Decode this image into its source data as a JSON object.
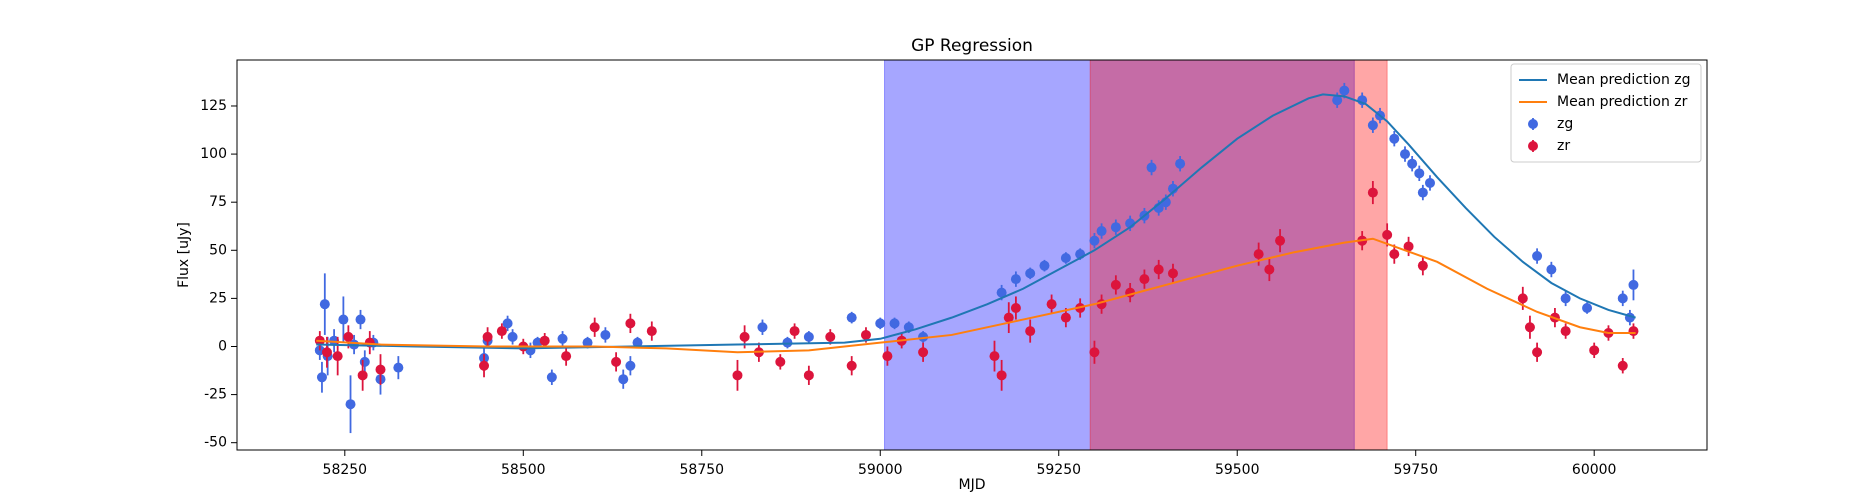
{
  "chart_data": {
    "type": "line",
    "title": "GP Regression",
    "x_label": "MJD",
    "y_label": "Flux [uJy]",
    "xlim": [
      58099,
      60158
    ],
    "ylim": [
      -53.8,
      148.9
    ],
    "xticks": [
      58250,
      58500,
      58750,
      59000,
      59250,
      59500,
      59750,
      60000
    ],
    "yticks": [
      -50,
      -25,
      0,
      25,
      50,
      75,
      100,
      125
    ],
    "legend": "upper right",
    "spans": [
      {
        "x": [
          59006,
          59664
        ],
        "color": "#0000ff"
      },
      {
        "x": [
          59294,
          59710
        ],
        "color": "#ff0000"
      }
    ],
    "span_alpha": 0.35,
    "series": [
      {
        "name": "Mean prediction zg",
        "type": "line",
        "color": "#1f77b4",
        "x": [
          58210,
          58350,
          58500,
          58650,
          58800,
          58950,
          59000,
          59050,
          59100,
          59150,
          59200,
          59250,
          59300,
          59350,
          59400,
          59450,
          59500,
          59550,
          59600,
          59620,
          59650,
          59680,
          59710,
          59740,
          59780,
          59820,
          59860,
          59900,
          59940,
          59980,
          60020,
          60058
        ],
        "values": [
          1,
          0,
          -1,
          0,
          1,
          2,
          4,
          9,
          15,
          22,
          30,
          40,
          50,
          62,
          77,
          93,
          108,
          120,
          129,
          131,
          130,
          126,
          117,
          105,
          88,
          72,
          57,
          44,
          33,
          25,
          19,
          15
        ]
      },
      {
        "name": "Mean prediction zr",
        "type": "line",
        "color": "#ff7f0e",
        "x": [
          58210,
          58300,
          58450,
          58600,
          58700,
          58800,
          58900,
          59000,
          59100,
          59200,
          59300,
          59400,
          59500,
          59580,
          59650,
          59690,
          59720,
          59780,
          59850,
          59920,
          59980,
          60020,
          60058
        ],
        "values": [
          3,
          1,
          0,
          0,
          -1,
          -3,
          -2,
          2,
          6,
          14,
          22,
          32,
          42,
          49,
          54,
          56,
          52,
          44,
          30,
          18,
          10,
          7,
          7
        ]
      },
      {
        "name": "zg",
        "type": "errorbar",
        "color": "#4169e1",
        "x": [
          58215,
          58218,
          58222,
          58226,
          58235,
          58248,
          58258,
          58263,
          58272,
          58278,
          58290,
          58300,
          58325,
          58445,
          58450,
          58478,
          58485,
          58510,
          58520,
          58540,
          58555,
          58590,
          58615,
          58640,
          58650,
          58660,
          58835,
          58870,
          58900,
          58960,
          59000,
          59020,
          59040,
          59060,
          59170,
          59190,
          59210,
          59230,
          59260,
          59280,
          59300,
          59310,
          59330,
          59350,
          59370,
          59380,
          59390,
          59400,
          59410,
          59420,
          59640,
          59650,
          59675,
          59690,
          59700,
          59720,
          59735,
          59745,
          59755,
          59760,
          59770,
          59920,
          59940,
          59960,
          59990,
          60040,
          60050,
          60055
        ],
        "values": [
          -2,
          -16,
          22,
          -5,
          3,
          14,
          -30,
          1,
          14,
          -8,
          2,
          -17,
          -11,
          -6,
          3,
          12,
          5,
          -2,
          2,
          -16,
          4,
          2,
          6,
          -17,
          -10,
          2,
          10,
          2,
          5,
          15,
          12,
          12,
          10,
          5,
          28,
          35,
          38,
          42,
          46,
          48,
          55,
          60,
          62,
          64,
          68,
          93,
          72,
          75,
          82,
          95,
          128,
          133,
          128,
          115,
          120,
          108,
          100,
          95,
          90,
          80,
          85,
          47,
          40,
          25,
          20,
          25,
          15,
          32
        ],
        "errors": [
          5,
          8,
          16,
          10,
          6,
          12,
          15,
          5,
          5,
          6,
          4,
          8,
          6,
          5,
          4,
          4,
          4,
          4,
          3,
          4,
          4,
          3,
          4,
          5,
          5,
          3,
          4,
          3,
          3,
          3,
          3,
          3,
          3,
          3,
          4,
          4,
          3,
          3,
          3,
          3,
          4,
          4,
          4,
          4,
          4,
          4,
          4,
          4,
          4,
          4,
          4,
          4,
          4,
          4,
          4,
          4,
          4,
          4,
          4,
          4,
          4,
          4,
          4,
          4,
          3,
          4,
          4,
          8
        ]
      },
      {
        "name": "zr",
        "type": "errorbar",
        "color": "#dc143c",
        "x": [
          58215,
          58225,
          58240,
          58255,
          58275,
          58285,
          58300,
          58445,
          58450,
          58470,
          58500,
          58530,
          58560,
          58600,
          58630,
          58650,
          58680,
          58800,
          58810,
          58830,
          58860,
          58880,
          58900,
          58930,
          58960,
          58980,
          59010,
          59030,
          59060,
          59160,
          59170,
          59180,
          59190,
          59210,
          59240,
          59260,
          59280,
          59300,
          59310,
          59330,
          59350,
          59370,
          59390,
          59410,
          59530,
          59545,
          59560,
          59675,
          59690,
          59710,
          59720,
          59740,
          59760,
          59900,
          59910,
          59920,
          59945,
          59960,
          60000,
          60020,
          60040,
          60055
        ],
        "values": [
          3,
          -3,
          -5,
          5,
          -15,
          2,
          -12,
          -10,
          5,
          8,
          0,
          3,
          -5,
          10,
          -8,
          12,
          8,
          -15,
          5,
          -3,
          -8,
          8,
          -15,
          5,
          -10,
          6,
          -5,
          3,
          -3,
          -5,
          -15,
          15,
          20,
          8,
          22,
          15,
          20,
          -3,
          22,
          32,
          28,
          35,
          40,
          38,
          48,
          40,
          55,
          55,
          80,
          58,
          48,
          52,
          42,
          25,
          10,
          -3,
          15,
          8,
          -2,
          7,
          -10,
          8
        ],
        "errors": [
          5,
          8,
          10,
          6,
          8,
          6,
          8,
          6,
          5,
          4,
          4,
          4,
          5,
          5,
          5,
          5,
          5,
          8,
          6,
          5,
          4,
          4,
          5,
          4,
          5,
          4,
          5,
          4,
          5,
          8,
          8,
          8,
          6,
          6,
          5,
          5,
          5,
          6,
          5,
          5,
          5,
          5,
          5,
          5,
          6,
          6,
          6,
          5,
          6,
          6,
          5,
          5,
          5,
          6,
          6,
          5,
          5,
          4,
          4,
          4,
          4,
          4
        ]
      }
    ]
  }
}
